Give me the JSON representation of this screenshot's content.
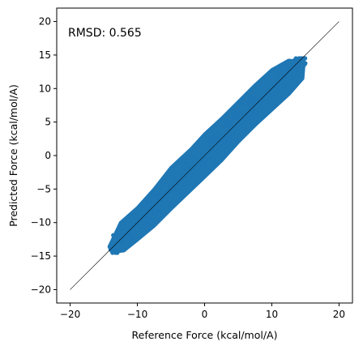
{
  "chart_data": {
    "type": "scatter",
    "title": "",
    "xlabel": "Reference Force (kcal/mol/A)",
    "ylabel": "Predicted Force (kcal/mol/A)",
    "xlim": [
      -22,
      22
    ],
    "ylim": [
      -22,
      22
    ],
    "xticks": [
      -20,
      -10,
      0,
      10,
      20
    ],
    "yticks": [
      -20,
      -15,
      -10,
      -5,
      0,
      5,
      10,
      15,
      20
    ],
    "annotation": "RMSD: 0.565",
    "grid": false,
    "legend": "none",
    "reference_line": {
      "x": [
        -20,
        20
      ],
      "y": [
        -20,
        20
      ],
      "color": "#000000"
    },
    "series": [
      {
        "marker_color": "#1f77b4",
        "x_range": [
          -14,
          15
        ],
        "y_range": [
          -14.5,
          14.5
        ],
        "relationship": "y ≈ x",
        "residual_spread": 1.2,
        "cloud_outline": [
          [
            -14.2,
            -13.6
          ],
          [
            -12.5,
            -10.0
          ],
          [
            -10.0,
            -7.8
          ],
          [
            -7.5,
            -5.0
          ],
          [
            -5.0,
            -1.8
          ],
          [
            -2.0,
            1.0
          ],
          [
            0.0,
            3.2
          ],
          [
            2.5,
            5.5
          ],
          [
            5.0,
            8.0
          ],
          [
            7.5,
            10.5
          ],
          [
            10.0,
            12.8
          ],
          [
            12.5,
            14.2
          ],
          [
            14.8,
            14.0
          ],
          [
            14.6,
            11.5
          ],
          [
            12.6,
            9.2
          ],
          [
            10.0,
            6.8
          ],
          [
            7.5,
            4.5
          ],
          [
            5.0,
            2.0
          ],
          [
            2.5,
            -0.8
          ],
          [
            0.0,
            -3.2
          ],
          [
            -2.5,
            -5.6
          ],
          [
            -5.0,
            -8.0
          ],
          [
            -7.5,
            -10.5
          ],
          [
            -10.0,
            -12.6
          ],
          [
            -12.0,
            -14.2
          ],
          [
            -13.8,
            -14.4
          ]
        ]
      }
    ]
  }
}
